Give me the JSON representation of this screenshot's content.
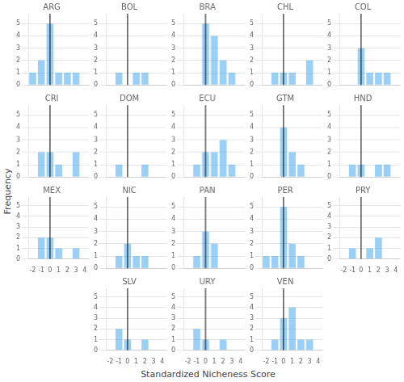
{
  "xlabel": "Standardized Nicheness Score",
  "ylabel": "Frequency",
  "chart_data": [
    {
      "type": "bar",
      "title": "ARG",
      "x": [
        -2,
        -1,
        0,
        1,
        2,
        3
      ],
      "values": [
        1,
        2,
        5,
        1,
        1,
        1
      ],
      "vline_x": 0,
      "xlim": [
        -2.5,
        4.5
      ],
      "xticks": [
        -2,
        -1,
        0,
        1,
        2,
        3,
        4
      ],
      "ylim": [
        0,
        5.8
      ],
      "yticks": [
        0,
        1,
        2,
        3,
        4,
        5
      ],
      "grid": true,
      "tick_labels": "y"
    },
    {
      "type": "bar",
      "title": "BOL",
      "x": [
        -2,
        -1,
        0,
        1,
        2,
        3
      ],
      "values": [
        0,
        1,
        0,
        1,
        1,
        0
      ],
      "vline_x": 0,
      "xlim": [
        -2.5,
        4.5
      ],
      "xticks": [
        -2,
        -1,
        0,
        1,
        2,
        3,
        4
      ],
      "ylim": [
        0,
        5.8
      ],
      "yticks": [
        0,
        1,
        2,
        3,
        4,
        5
      ],
      "grid": true,
      "tick_labels": "y"
    },
    {
      "type": "bar",
      "title": "BRA",
      "x": [
        -2,
        -1,
        0,
        1,
        2,
        3
      ],
      "values": [
        0,
        0,
        5,
        4,
        2,
        1
      ],
      "vline_x": 0,
      "xlim": [
        -2.5,
        4.5
      ],
      "xticks": [
        -2,
        -1,
        0,
        1,
        2,
        3,
        4
      ],
      "ylim": [
        0,
        5.8
      ],
      "yticks": [
        0,
        1,
        2,
        3,
        4,
        5
      ],
      "grid": true,
      "tick_labels": "y"
    },
    {
      "type": "bar",
      "title": "CHL",
      "x": [
        -2,
        -1,
        0,
        1,
        2,
        3
      ],
      "values": [
        0,
        1,
        1,
        1,
        0,
        2
      ],
      "vline_x": 0,
      "xlim": [
        -2.5,
        4.5
      ],
      "xticks": [
        -2,
        -1,
        0,
        1,
        2,
        3,
        4
      ],
      "ylim": [
        0,
        5.8
      ],
      "yticks": [
        0,
        1,
        2,
        3,
        4,
        5
      ],
      "grid": true,
      "tick_labels": "y"
    },
    {
      "type": "bar",
      "title": "COL",
      "x": [
        -2,
        -1,
        0,
        1,
        2,
        3
      ],
      "values": [
        0,
        0,
        3,
        1,
        1,
        1
      ],
      "vline_x": 0,
      "xlim": [
        -2.5,
        4.5
      ],
      "xticks": [
        -2,
        -1,
        0,
        1,
        2,
        3,
        4
      ],
      "ylim": [
        0,
        5.8
      ],
      "yticks": [
        0,
        1,
        2,
        3,
        4,
        5
      ],
      "grid": true,
      "tick_labels": "y"
    },
    {
      "type": "bar",
      "title": "CRI",
      "x": [
        -2,
        -1,
        0,
        1,
        2,
        3
      ],
      "values": [
        0,
        2,
        2,
        1,
        0,
        2
      ],
      "vline_x": 0,
      "xlim": [
        -2.5,
        4.5
      ],
      "xticks": [
        -2,
        -1,
        0,
        1,
        2,
        3,
        4
      ],
      "ylim": [
        0,
        5.8
      ],
      "yticks": [
        0,
        1,
        2,
        3,
        4,
        5
      ],
      "grid": true,
      "tick_labels": "y"
    },
    {
      "type": "bar",
      "title": "DOM",
      "x": [
        -2,
        -1,
        0,
        1,
        2,
        3
      ],
      "values": [
        0,
        1,
        0,
        0,
        1,
        0
      ],
      "vline_x": 0,
      "xlim": [
        -2.5,
        4.5
      ],
      "xticks": [
        -2,
        -1,
        0,
        1,
        2,
        3,
        4
      ],
      "ylim": [
        0,
        5.8
      ],
      "yticks": [
        0,
        1,
        2,
        3,
        4,
        5
      ],
      "grid": true,
      "tick_labels": "y"
    },
    {
      "type": "bar",
      "title": "ECU",
      "x": [
        -2,
        -1,
        0,
        1,
        2,
        3
      ],
      "values": [
        0,
        1,
        2,
        2,
        3,
        1
      ],
      "vline_x": 0,
      "xlim": [
        -2.5,
        4.5
      ],
      "xticks": [
        -2,
        -1,
        0,
        1,
        2,
        3,
        4
      ],
      "ylim": [
        0,
        5.8
      ],
      "yticks": [
        0,
        1,
        2,
        3,
        4,
        5
      ],
      "grid": true,
      "tick_labels": "y"
    },
    {
      "type": "bar",
      "title": "GTM",
      "x": [
        -2,
        -1,
        0,
        1,
        2,
        3
      ],
      "values": [
        0,
        0,
        4,
        2,
        1,
        0
      ],
      "vline_x": 0,
      "xlim": [
        -2.5,
        4.5
      ],
      "xticks": [
        -2,
        -1,
        0,
        1,
        2,
        3,
        4
      ],
      "ylim": [
        0,
        5.8
      ],
      "yticks": [
        0,
        1,
        2,
        3,
        4,
        5
      ],
      "grid": true,
      "tick_labels": "y"
    },
    {
      "type": "bar",
      "title": "HND",
      "x": [
        -2,
        -1,
        0,
        1,
        2,
        3
      ],
      "values": [
        0,
        1,
        1,
        0,
        1,
        1
      ],
      "vline_x": 0,
      "xlim": [
        -2.5,
        4.5
      ],
      "xticks": [
        -2,
        -1,
        0,
        1,
        2,
        3,
        4
      ],
      "ylim": [
        0,
        5.8
      ],
      "yticks": [
        0,
        1,
        2,
        3,
        4,
        5
      ],
      "grid": true,
      "tick_labels": "y"
    },
    {
      "type": "bar",
      "title": "MEX",
      "x": [
        -2,
        -1,
        0,
        1,
        2,
        3
      ],
      "values": [
        0,
        2,
        2,
        1,
        0,
        1
      ],
      "vline_x": 0,
      "xlim": [
        -2.5,
        4.5
      ],
      "xticks": [
        -2,
        -1,
        0,
        1,
        2,
        3,
        4
      ],
      "ylim": [
        0,
        5.8
      ],
      "yticks": [
        0,
        1,
        2,
        3,
        4,
        5
      ],
      "grid": true
    },
    {
      "type": "bar",
      "title": "NIC",
      "x": [
        -2,
        -1,
        0,
        1,
        2,
        3
      ],
      "values": [
        0,
        1,
        2,
        1,
        1,
        0
      ],
      "vline_x": 0,
      "xlim": [
        -2.5,
        4.5
      ],
      "xticks": [
        -2,
        -1,
        0,
        1,
        2,
        3,
        4
      ],
      "ylim": [
        0,
        5.8
      ],
      "yticks": [
        0,
        1,
        2,
        3,
        4,
        5
      ],
      "grid": true,
      "tick_labels": "y"
    },
    {
      "type": "bar",
      "title": "PAN",
      "x": [
        -2,
        -1,
        0,
        1,
        2,
        3
      ],
      "values": [
        0,
        1,
        3,
        2,
        0,
        0
      ],
      "vline_x": 0,
      "xlim": [
        -2.5,
        4.5
      ],
      "xticks": [
        -2,
        -1,
        0,
        1,
        2,
        3,
        4
      ],
      "ylim": [
        0,
        5.8
      ],
      "yticks": [
        0,
        1,
        2,
        3,
        4,
        5
      ],
      "grid": true,
      "tick_labels": "y"
    },
    {
      "type": "bar",
      "title": "PER",
      "x": [
        -2,
        -1,
        0,
        1,
        2,
        3
      ],
      "values": [
        1,
        1,
        5,
        2,
        1,
        0
      ],
      "vline_x": 0,
      "xlim": [
        -2.5,
        4.5
      ],
      "xticks": [
        -2,
        -1,
        0,
        1,
        2,
        3,
        4
      ],
      "ylim": [
        0,
        5.8
      ],
      "yticks": [
        0,
        1,
        2,
        3,
        4,
        5
      ],
      "grid": true,
      "tick_labels": "y"
    },
    {
      "type": "bar",
      "title": "PRY",
      "x": [
        -2,
        -1,
        0,
        1,
        2,
        3
      ],
      "values": [
        0,
        1,
        0,
        1,
        2,
        0
      ],
      "vline_x": 0,
      "xlim": [
        -2.5,
        4.5
      ],
      "xticks": [
        -2,
        -1,
        0,
        1,
        2,
        3,
        4
      ],
      "ylim": [
        0,
        5.8
      ],
      "yticks": [
        0,
        1,
        2,
        3,
        4,
        5
      ],
      "grid": true
    },
    {
      "type": "bar",
      "title": "SLV",
      "x": [
        -2,
        -1,
        0,
        1,
        2,
        3
      ],
      "values": [
        0,
        2,
        1,
        0,
        1,
        0
      ],
      "vline_x": 0,
      "xlim": [
        -2.5,
        4.5
      ],
      "xticks": [
        -2,
        -1,
        0,
        1,
        2,
        3,
        4
      ],
      "ylim": [
        0,
        5.8
      ],
      "yticks": [
        0,
        1,
        2,
        3,
        4,
        5
      ],
      "grid": true
    },
    {
      "type": "bar",
      "title": "URY",
      "x": [
        -2,
        -1,
        0,
        1,
        2,
        3
      ],
      "values": [
        0,
        2,
        1,
        0,
        1,
        0
      ],
      "vline_x": 0,
      "xlim": [
        -2.5,
        4.5
      ],
      "xticks": [
        -2,
        -1,
        0,
        1,
        2,
        3,
        4
      ],
      "ylim": [
        0,
        5.8
      ],
      "yticks": [
        0,
        1,
        2,
        3,
        4,
        5
      ],
      "grid": true
    },
    {
      "type": "bar",
      "title": "VEN",
      "x": [
        -2,
        -1,
        0,
        1,
        2,
        3
      ],
      "values": [
        0,
        1,
        3,
        4,
        1,
        1
      ],
      "vline_x": 0,
      "xlim": [
        -2.5,
        4.5
      ],
      "xticks": [
        -2,
        -1,
        0,
        1,
        2,
        3,
        4
      ],
      "ylim": [
        0,
        5.8
      ],
      "yticks": [
        0,
        1,
        2,
        3,
        4,
        5
      ],
      "grid": true
    }
  ]
}
